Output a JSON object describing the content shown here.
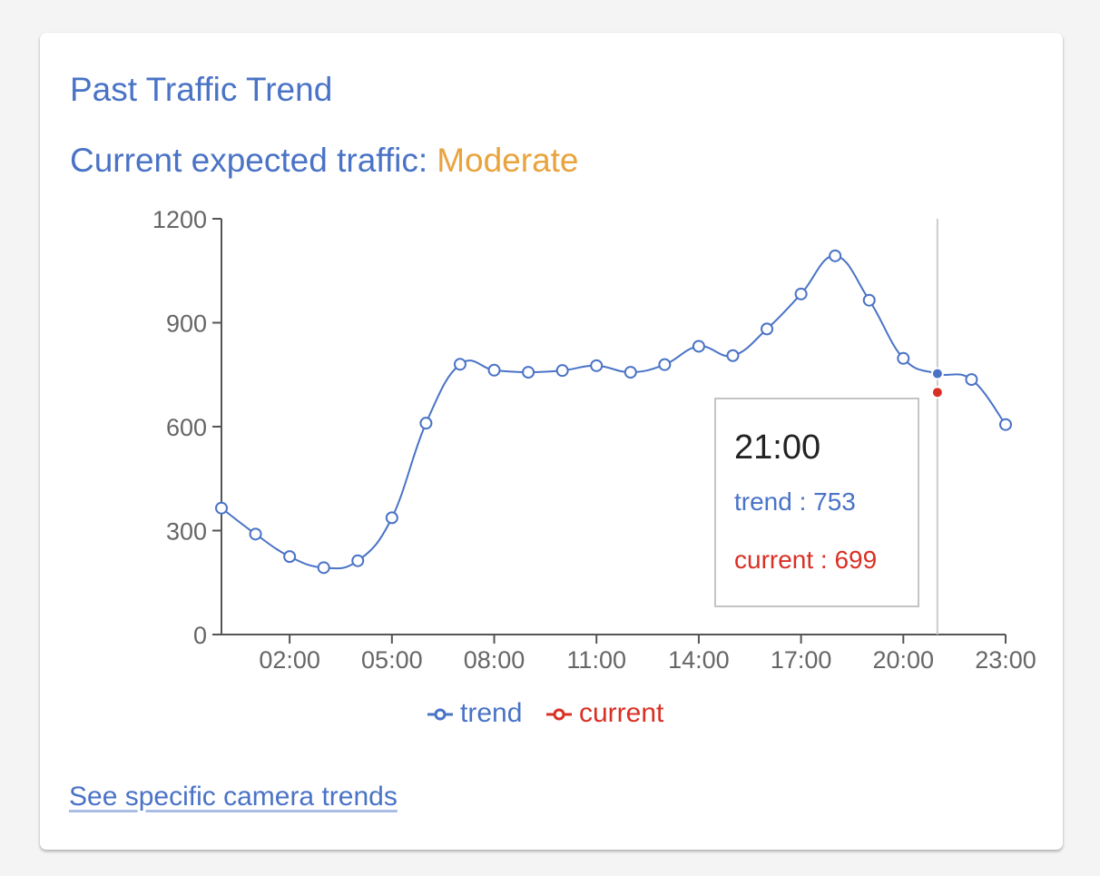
{
  "card": {
    "title": "Past Traffic Trend",
    "subtitle_label": "Current expected traffic:",
    "subtitle_value": "Moderate",
    "link_text": "See specific camera trends"
  },
  "colors": {
    "trend": "#4a73c6",
    "current": "#d93025",
    "moderate": "#e8a33d"
  },
  "chart_data": {
    "type": "line",
    "x": [
      "00:00",
      "01:00",
      "02:00",
      "03:00",
      "04:00",
      "05:00",
      "06:00",
      "07:00",
      "08:00",
      "09:00",
      "10:00",
      "11:00",
      "12:00",
      "13:00",
      "14:00",
      "15:00",
      "16:00",
      "17:00",
      "18:00",
      "19:00",
      "20:00",
      "21:00",
      "22:00",
      "23:00"
    ],
    "x_tick_labels": [
      "02:00",
      "05:00",
      "08:00",
      "11:00",
      "14:00",
      "17:00",
      "20:00",
      "23:00"
    ],
    "y_ticks": [
      0,
      300,
      600,
      900,
      1200
    ],
    "ylim": [
      0,
      1200
    ],
    "series": [
      {
        "name": "trend",
        "values": [
          365,
          290,
          225,
          193,
          213,
          337,
          610,
          780,
          763,
          757,
          762,
          776,
          757,
          779,
          832,
          805,
          882,
          983,
          1093,
          965,
          797,
          753,
          736,
          606
        ]
      },
      {
        "name": "current",
        "points": [
          {
            "x": "21:00",
            "y": 699
          }
        ]
      }
    ],
    "legend": [
      "trend",
      "current"
    ],
    "legend_position": "bottom",
    "tooltip": {
      "x": "21:00",
      "trend_label": "trend : 753",
      "current_label": "current : 699"
    }
  }
}
